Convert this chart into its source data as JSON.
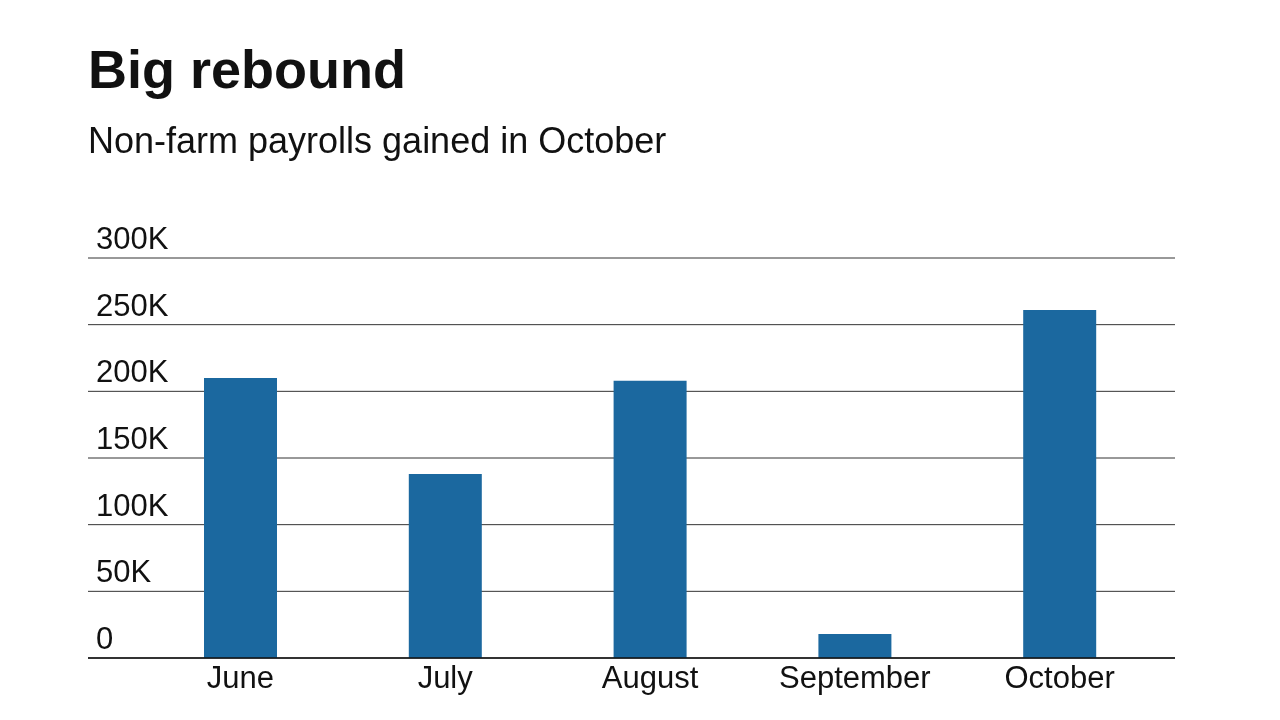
{
  "chart_data": {
    "type": "bar",
    "title": "Big rebound",
    "subtitle": "Non-farm payrolls gained in October",
    "categories": [
      "June",
      "July",
      "August",
      "September",
      "October"
    ],
    "values": [
      210000,
      138000,
      208000,
      18000,
      261000
    ],
    "color": "#1b689f",
    "ylim": [
      0,
      300000
    ],
    "yticks": [
      0,
      {
        "value": 50000,
        "label": "50K"
      },
      {
        "value": 100000,
        "label": "100K"
      },
      {
        "value": 150000,
        "label": "150K"
      },
      {
        "value": 200000,
        "label": "200K"
      },
      {
        "value": 250000,
        "label": "250K"
      },
      {
        "value": 300000,
        "label": "300K"
      }
    ],
    "grid": "y"
  }
}
